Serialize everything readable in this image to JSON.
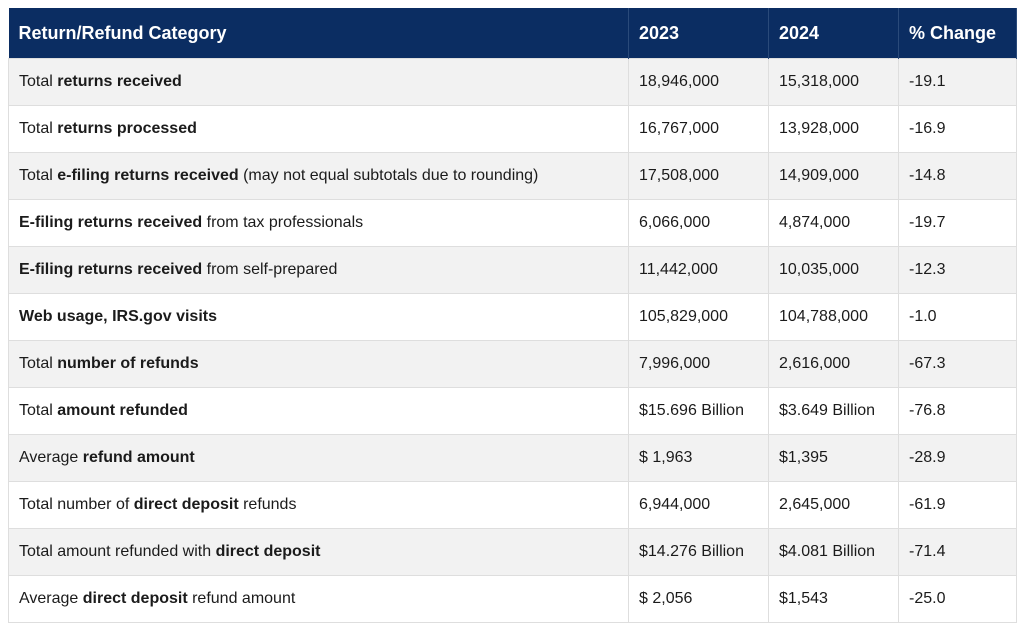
{
  "table": {
    "header": [
      "Return/Refund Category",
      "2023",
      "2024",
      "% Change"
    ],
    "rows": [
      {
        "category": [
          {
            "text": "Total ",
            "bold": false
          },
          {
            "text": "returns received",
            "bold": true
          }
        ],
        "cells": [
          "18,946,000",
          "15,318,000",
          "-19.1"
        ]
      },
      {
        "category": [
          {
            "text": "Total ",
            "bold": false
          },
          {
            "text": "returns processed",
            "bold": true
          }
        ],
        "cells": [
          "16,767,000",
          "13,928,000",
          "-16.9"
        ]
      },
      {
        "category": [
          {
            "text": "Total ",
            "bold": false
          },
          {
            "text": "e-filing returns received",
            "bold": true
          },
          {
            "text": " (may not equal subtotals due to rounding)",
            "bold": false
          }
        ],
        "cells": [
          "17,508,000",
          "14,909,000",
          "-14.8"
        ]
      },
      {
        "category": [
          {
            "text": "E-filing returns received",
            "bold": true
          },
          {
            "text": " from tax professionals",
            "bold": false
          }
        ],
        "cells": [
          "6,066,000",
          "4,874,000",
          "-19.7"
        ]
      },
      {
        "category": [
          {
            "text": "E-filing returns received",
            "bold": true
          },
          {
            "text": " from self-prepared",
            "bold": false
          }
        ],
        "cells": [
          "11,442,000",
          "10,035,000",
          "-12.3"
        ]
      },
      {
        "category": [
          {
            "text": "Web usage, IRS.gov visits",
            "bold": true
          }
        ],
        "cells": [
          "105,829,000",
          "104,788,000",
          "-1.0"
        ]
      },
      {
        "category": [
          {
            "text": "Total ",
            "bold": false
          },
          {
            "text": "number of refunds",
            "bold": true
          }
        ],
        "cells": [
          "7,996,000",
          "2,616,000",
          "-67.3"
        ]
      },
      {
        "category": [
          {
            "text": "Total ",
            "bold": false
          },
          {
            "text": "amount refunded",
            "bold": true
          }
        ],
        "cells": [
          "$15.696 Billion",
          "$3.649 Billion",
          "-76.8"
        ]
      },
      {
        "category": [
          {
            "text": "Average ",
            "bold": false
          },
          {
            "text": "refund amount",
            "bold": true
          }
        ],
        "cells": [
          "$ 1,963",
          "$1,395",
          "-28.9"
        ]
      },
      {
        "category": [
          {
            "text": "Total number of ",
            "bold": false
          },
          {
            "text": "direct deposit",
            "bold": true
          },
          {
            "text": " refunds",
            "bold": false
          }
        ],
        "cells": [
          "6,944,000",
          "2,645,000",
          "-61.9"
        ]
      },
      {
        "category": [
          {
            "text": "Total amount refunded with ",
            "bold": false
          },
          {
            "text": "direct deposit",
            "bold": true
          }
        ],
        "cells": [
          "$14.276 Billion",
          "$4.081 Billion",
          "-71.4"
        ]
      },
      {
        "category": [
          {
            "text": "Average ",
            "bold": false
          },
          {
            "text": "direct deposit",
            "bold": true
          },
          {
            "text": " refund amount",
            "bold": false
          }
        ],
        "cells": [
          "$ 2,056",
          "$1,543",
          "-25.0"
        ]
      }
    ]
  }
}
